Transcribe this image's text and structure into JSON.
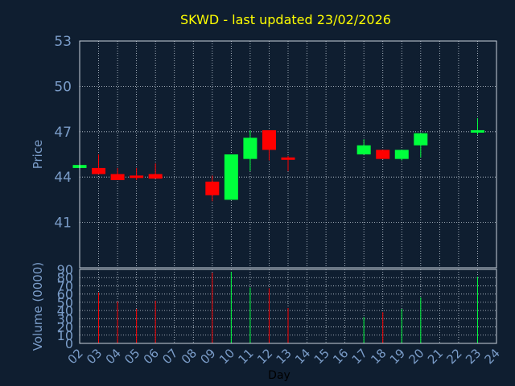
{
  "colors": {
    "background": "#0f1e30",
    "title": "#ffff00",
    "axis_text": "#7a9cc8",
    "grid": "#c8d2dc",
    "frame": "#c8d2dc",
    "up": "#00ff3c",
    "down": "#ff0000"
  },
  "chart_data": {
    "type": "candlestick",
    "title": "SKWD - last updated 23/02/2026",
    "xlabel": "Day",
    "price_panel": {
      "ylabel": "Price",
      "ylim": [
        38,
        53
      ],
      "yticks": [
        "53",
        "50",
        "47",
        "44",
        "41"
      ],
      "ytick_values": [
        53,
        50,
        47,
        44,
        41
      ]
    },
    "volume_panel": {
      "ylabel": "Volume (0000)",
      "ylim": [
        0,
        90
      ],
      "yticks": [
        "90",
        "80",
        "70",
        "60",
        "50",
        "40",
        "30",
        "20",
        "10",
        "0"
      ],
      "ytick_values": [
        90,
        80,
        70,
        60,
        50,
        40,
        30,
        20,
        10,
        0
      ]
    },
    "xticks": [
      "02",
      "03",
      "04",
      "05",
      "06",
      "07",
      "08",
      "09",
      "10",
      "11",
      "12",
      "13",
      "14",
      "15",
      "16",
      "17",
      "18",
      "19",
      "20",
      "21",
      "22",
      "23",
      "24"
    ],
    "grid": true,
    "candles": [
      {
        "day": "02",
        "open": 44.6,
        "close": 44.8,
        "high": 44.8,
        "low": 44.6,
        "volume": 0
      },
      {
        "day": "03",
        "open": 44.6,
        "close": 44.2,
        "high": 45.5,
        "low": 44.2,
        "volume": 62
      },
      {
        "day": "04",
        "open": 44.2,
        "close": 43.8,
        "high": 44.6,
        "low": 43.8,
        "volume": 51
      },
      {
        "day": "05",
        "open": 44.1,
        "close": 44.0,
        "high": 44.6,
        "low": 43.8,
        "volume": 42
      },
      {
        "day": "06",
        "open": 44.2,
        "close": 43.9,
        "high": 44.9,
        "low": 43.9,
        "volume": 52
      },
      {
        "day": "09",
        "open": 43.7,
        "close": 42.8,
        "high": 44.1,
        "low": 42.4,
        "volume": 86
      },
      {
        "day": "10",
        "open": 42.5,
        "close": 45.5,
        "high": 45.5,
        "low": 42.5,
        "volume": 87
      },
      {
        "day": "11",
        "open": 45.2,
        "close": 46.6,
        "high": 47.1,
        "low": 44.4,
        "volume": 68
      },
      {
        "day": "12",
        "open": 47.1,
        "close": 45.8,
        "high": 47.1,
        "low": 45.1,
        "volume": 67
      },
      {
        "day": "13",
        "open": 45.3,
        "close": 45.2,
        "high": 45.4,
        "low": 44.4,
        "volume": 43
      },
      {
        "day": "17",
        "open": 45.5,
        "close": 46.1,
        "high": 46.5,
        "low": 45.5,
        "volume": 32
      },
      {
        "day": "18",
        "open": 45.8,
        "close": 45.2,
        "high": 45.8,
        "low": 45.2,
        "volume": 38
      },
      {
        "day": "19",
        "open": 45.2,
        "close": 45.8,
        "high": 45.8,
        "low": 45.1,
        "volume": 42
      },
      {
        "day": "20",
        "open": 46.1,
        "close": 46.9,
        "high": 46.9,
        "low": 45.3,
        "volume": 56
      },
      {
        "day": "23",
        "open": 47.0,
        "close": 47.1,
        "high": 47.9,
        "low": 46.8,
        "volume": 81
      }
    ]
  }
}
